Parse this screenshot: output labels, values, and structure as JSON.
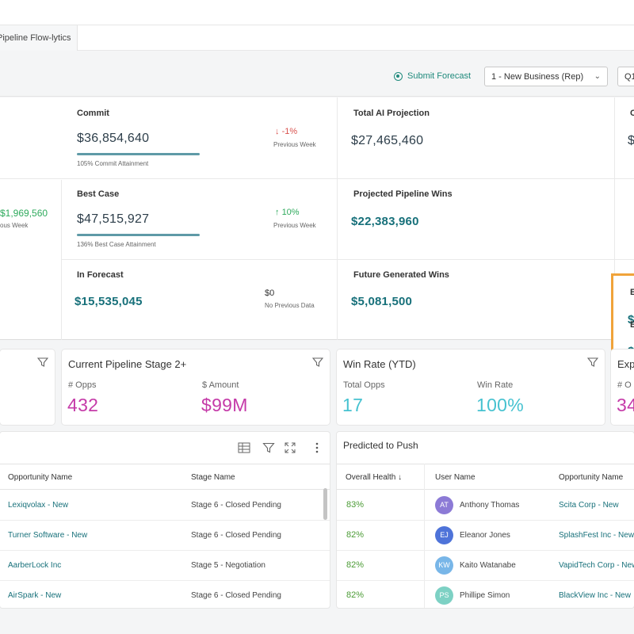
{
  "tab": {
    "label": "Pipeline Flow-lytics"
  },
  "toolbar": {
    "submit_forecast": "Submit Forecast",
    "business_select": "1 - New Business (Rep)",
    "period_select": "Q1"
  },
  "kpis": {
    "commit": {
      "label": "Commit",
      "value": "$36,854,640",
      "attainment": "105%  Commit Attainment",
      "delta": "-1%",
      "delta_sub": "Previous Week"
    },
    "best_case": {
      "label": "Best Case",
      "value": "$47,515,927",
      "attainment": "136%  Best Case Attainment",
      "delta": "10%",
      "delta_sub": "Previous Week"
    },
    "in_forecast": {
      "label": "In Forecast",
      "value": "$15,535,045",
      "prev_value": "$0",
      "prev_sub": "No Previous Data"
    },
    "left_partial": {
      "value": "$1,969,560",
      "sub": "ous Week"
    },
    "total_ai": {
      "label": "Total AI Projection",
      "value": "$27,465,460"
    },
    "projected_wins": {
      "label": "Projected Pipeline Wins",
      "value": "$22,383,960"
    },
    "future_wins": {
      "label": "Future Generated Wins",
      "value": "$5,081,500"
    },
    "right_partial": {
      "c1": "C",
      "c1v": "$",
      "c2": "E",
      "c2v": "$",
      "c3": "E",
      "c3v": "$"
    }
  },
  "cards": {
    "pipeline": {
      "title": "Current Pipeline Stage 2+",
      "opps_label": "# Opps",
      "opps_value": "432",
      "amount_label": "$ Amount",
      "amount_value": "$99M"
    },
    "winrate": {
      "title": "Win Rate (YTD)",
      "opps_label": "Total Opps",
      "opps_value": "17",
      "rate_label": "Win Rate",
      "rate_value": "100%"
    },
    "exp": {
      "title": "Exp",
      "label": "# O",
      "value": "34"
    }
  },
  "opportunities": {
    "headers": {
      "name": "Opportunity Name",
      "stage": "Stage Name"
    },
    "rows": [
      {
        "name": "Lexiqvolax - New",
        "stage": "Stage 6 - Closed Pending"
      },
      {
        "name": "Turner Software - New",
        "stage": "Stage 6 - Closed Pending"
      },
      {
        "name": "AarberLock Inc",
        "stage": "Stage 5 - Negotiation"
      },
      {
        "name": "AirSpark - New",
        "stage": "Stage 6 - Closed Pending"
      }
    ]
  },
  "push": {
    "title": "Predicted to Push",
    "headers": {
      "health": "Overall Health ↓",
      "user": "User Name",
      "opp": "Opportunity Name"
    },
    "rows": [
      {
        "health": "83%",
        "initials": "AT",
        "color": "#8c7ad6",
        "user": "Anthony Thomas",
        "opp": "Scita Corp - New"
      },
      {
        "health": "82%",
        "initials": "EJ",
        "color": "#4e73d9",
        "user": "Eleanor Jones",
        "opp": "SplashFest Inc - New"
      },
      {
        "health": "82%",
        "initials": "KW",
        "color": "#78b6e8",
        "user": "Kaito Watanabe",
        "opp": "VapidTech Corp - New"
      },
      {
        "health": "82%",
        "initials": "PS",
        "color": "#7dd1c4",
        "user": "Phillipe Simon",
        "opp": "BlackView Inc - New"
      }
    ]
  }
}
